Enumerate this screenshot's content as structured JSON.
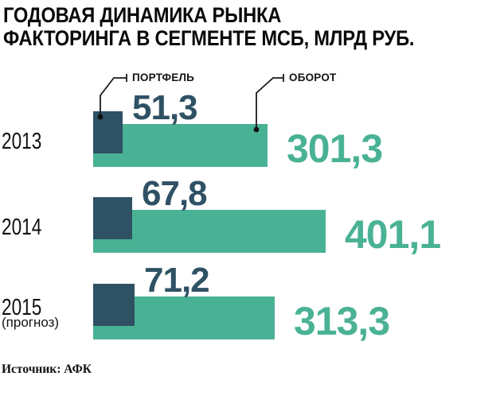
{
  "title": {
    "line1": "ГОДОВАЯ ДИНАМИКА РЫНКА",
    "line2": "ФАКТОРИНГА В СЕГМЕНТЕ МСБ, МЛРД РУБ."
  },
  "legend": {
    "portfolio_label": "ПОРТФЕЛЬ",
    "turnover_label": "ОБОРОТ"
  },
  "colors": {
    "portfolio": "#2f5164",
    "turnover": "#4ab294",
    "text": "#0a0a0a",
    "callout_line": "#1a1a1a",
    "background": "#ffffff"
  },
  "rows": [
    {
      "year": "2013",
      "note": "",
      "portfolio_label": "51,3",
      "turnover_label": "301,3"
    },
    {
      "year": "2014",
      "note": "",
      "portfolio_label": "67,8",
      "turnover_label": "401,1"
    },
    {
      "year": "2015",
      "note": "(прогноз)",
      "portfolio_label": "71,2",
      "turnover_label": "313,3"
    }
  ],
  "source": "Источник: АФК",
  "chart_data": {
    "type": "bar",
    "orientation": "horizontal",
    "title": "ГОДОВАЯ ДИНАМИКА РЫНКА ФАКТОРИНГА В СЕГМЕНТЕ МСБ, МЛРД РУБ.",
    "unit": "млрд руб.",
    "categories": [
      "2013",
      "2014",
      "2015 (прогноз)"
    ],
    "series": [
      {
        "name": "ПОРТФЕЛЬ",
        "color": "#2f5164",
        "values": [
          51.3,
          67.8,
          71.2
        ]
      },
      {
        "name": "ОБОРОТ",
        "color": "#4ab294",
        "values": [
          301.3,
          401.1,
          313.3
        ]
      }
    ],
    "value_labels": [
      [
        "51,3",
        "67,8",
        "71,2"
      ],
      [
        "301,3",
        "401,1",
        "313,3"
      ]
    ],
    "legend_position": "top",
    "grid": false,
    "axis": "none",
    "source": "Источник: АФК"
  }
}
